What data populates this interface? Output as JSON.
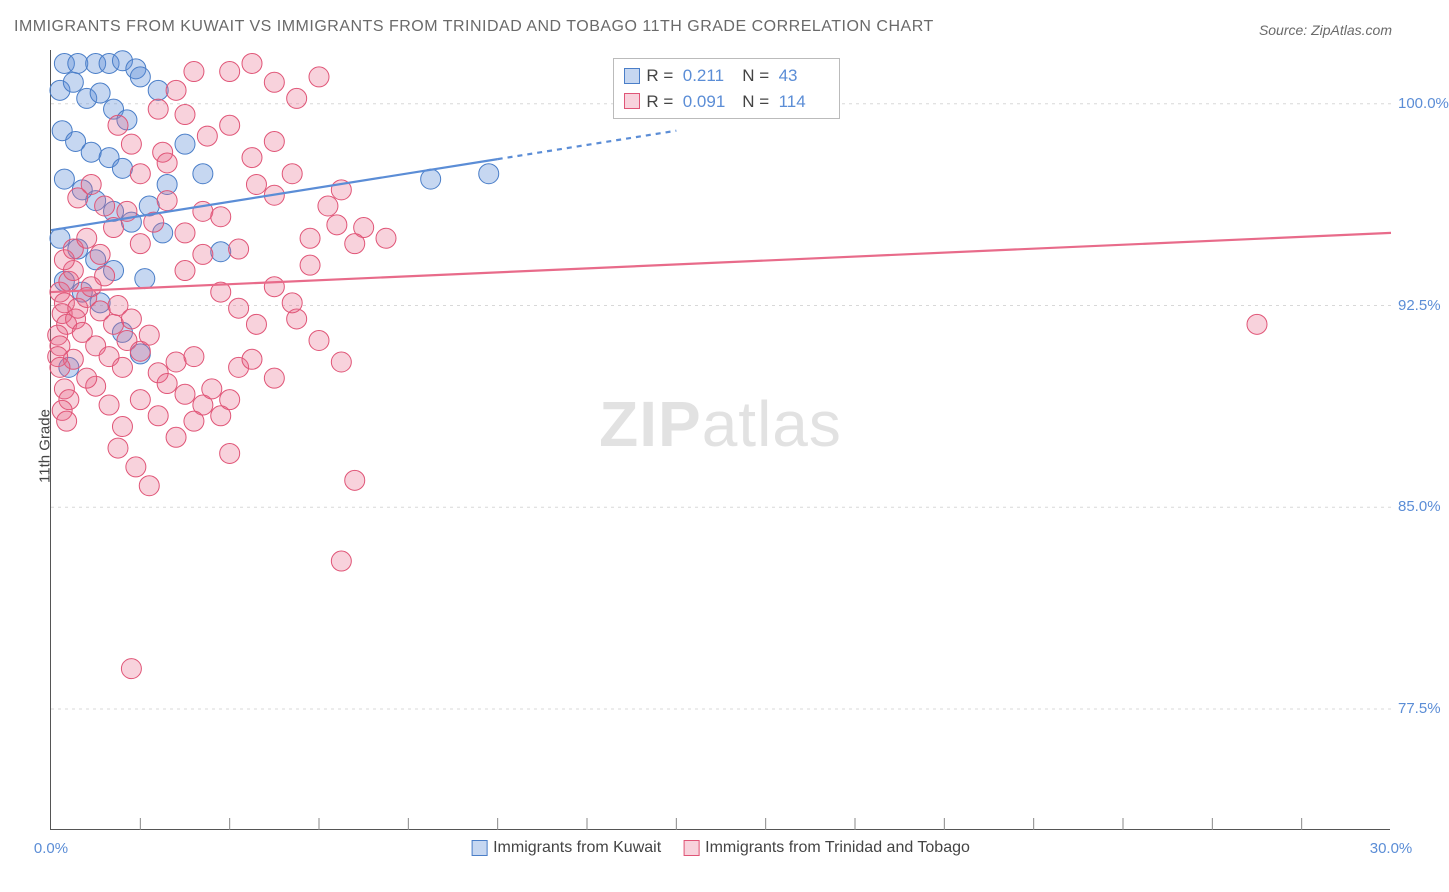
{
  "title": "IMMIGRANTS FROM KUWAIT VS IMMIGRANTS FROM TRINIDAD AND TOBAGO 11TH GRADE CORRELATION CHART",
  "source": "Source: ZipAtlas.com",
  "ylabel": "11th Grade",
  "watermark_a": "ZIP",
  "watermark_b": "atlas",
  "chart": {
    "type": "scatter-with-trendlines",
    "background_color": "#ffffff",
    "grid_color": "#d8d8d8",
    "axis_color": "#555555",
    "tick_label_color": "#5b8dd6",
    "label_fontsize": 15,
    "title_fontsize": 16,
    "title_color": "#6a6a6a",
    "xlim": [
      0,
      30
    ],
    "ylim": [
      73,
      102
    ],
    "xticks": [
      0,
      30
    ],
    "xtick_labels": [
      "0.0%",
      "30.0%"
    ],
    "xminor_ticks": [
      2,
      4,
      6,
      8,
      10,
      12,
      14,
      16,
      18,
      20,
      22,
      24,
      26,
      28
    ],
    "yticks": [
      77.5,
      85.0,
      92.5,
      100.0
    ],
    "ytick_labels": [
      "77.5%",
      "85.0%",
      "92.5%",
      "100.0%"
    ],
    "marker_radius": 10,
    "marker_opacity": 0.45,
    "line_width": 2.2
  },
  "series": [
    {
      "key": "kuwait",
      "label": "Immigrants from Kuwait",
      "color": "#5b8dd6",
      "fill": "rgba(91,141,214,0.35)",
      "stroke": "#4a7ec8",
      "R": "0.211",
      "N": "43",
      "trend": {
        "x1": 0,
        "y1": 95.3,
        "x2": 14,
        "y2": 99.0,
        "dash_from_x": 10
      },
      "points": [
        [
          0.3,
          101.5
        ],
        [
          0.6,
          101.5
        ],
        [
          1.0,
          101.5
        ],
        [
          1.3,
          101.5
        ],
        [
          1.6,
          101.6
        ],
        [
          1.9,
          101.3
        ],
        [
          0.2,
          100.5
        ],
        [
          0.5,
          100.8
        ],
        [
          0.8,
          100.2
        ],
        [
          1.1,
          100.4
        ],
        [
          1.4,
          99.8
        ],
        [
          1.7,
          99.4
        ],
        [
          0.25,
          99.0
        ],
        [
          0.55,
          98.6
        ],
        [
          0.9,
          98.2
        ],
        [
          1.3,
          98.0
        ],
        [
          1.6,
          97.6
        ],
        [
          0.3,
          97.2
        ],
        [
          0.7,
          96.8
        ],
        [
          1.0,
          96.4
        ],
        [
          1.4,
          96.0
        ],
        [
          1.8,
          95.6
        ],
        [
          2.2,
          96.2
        ],
        [
          2.6,
          97.0
        ],
        [
          3.0,
          98.5
        ],
        [
          3.4,
          97.4
        ],
        [
          0.2,
          95.0
        ],
        [
          0.6,
          94.6
        ],
        [
          1.0,
          94.2
        ],
        [
          1.4,
          93.8
        ],
        [
          0.3,
          93.4
        ],
        [
          0.7,
          93.0
        ],
        [
          1.1,
          92.6
        ],
        [
          1.6,
          91.5
        ],
        [
          2.0,
          90.7
        ],
        [
          0.4,
          90.2
        ],
        [
          8.5,
          97.2
        ],
        [
          9.8,
          97.4
        ],
        [
          3.8,
          94.5
        ],
        [
          2.5,
          95.2
        ],
        [
          2.0,
          101.0
        ],
        [
          2.4,
          100.5
        ],
        [
          2.1,
          93.5
        ]
      ]
    },
    {
      "key": "trinidad",
      "label": "Immigrants from Trinidad and Tobago",
      "color": "#e86b8a",
      "fill": "rgba(232,107,138,0.30)",
      "stroke": "#e05577",
      "R": "0.091",
      "N": "114",
      "trend": {
        "x1": 0,
        "y1": 93.0,
        "x2": 30,
        "y2": 95.2,
        "dash_from_x": 30
      },
      "points": [
        [
          0.2,
          93.0
        ],
        [
          0.3,
          92.6
        ],
        [
          0.25,
          92.2
        ],
        [
          0.35,
          91.8
        ],
        [
          0.4,
          93.4
        ],
        [
          0.5,
          93.8
        ],
        [
          0.55,
          92.0
        ],
        [
          0.6,
          92.4
        ],
        [
          0.7,
          91.5
        ],
        [
          0.8,
          92.8
        ],
        [
          0.9,
          93.2
        ],
        [
          1.0,
          91.0
        ],
        [
          1.1,
          92.3
        ],
        [
          1.2,
          93.6
        ],
        [
          1.3,
          90.6
        ],
        [
          1.4,
          91.8
        ],
        [
          1.5,
          92.5
        ],
        [
          1.6,
          90.2
        ],
        [
          1.7,
          91.2
        ],
        [
          1.8,
          92.0
        ],
        [
          2.0,
          90.8
        ],
        [
          2.2,
          91.4
        ],
        [
          2.4,
          90.0
        ],
        [
          2.6,
          89.6
        ],
        [
          2.8,
          90.4
        ],
        [
          3.0,
          89.2
        ],
        [
          3.2,
          90.6
        ],
        [
          3.4,
          88.8
        ],
        [
          3.6,
          89.4
        ],
        [
          3.8,
          88.4
        ],
        [
          4.0,
          89.0
        ],
        [
          4.2,
          90.2
        ],
        [
          0.3,
          94.2
        ],
        [
          0.5,
          94.6
        ],
        [
          0.8,
          95.0
        ],
        [
          1.1,
          94.4
        ],
        [
          1.4,
          95.4
        ],
        [
          1.7,
          96.0
        ],
        [
          2.0,
          94.8
        ],
        [
          2.3,
          95.6
        ],
        [
          2.6,
          96.4
        ],
        [
          3.0,
          95.2
        ],
        [
          3.4,
          96.0
        ],
        [
          3.8,
          95.8
        ],
        [
          4.2,
          94.6
        ],
        [
          4.6,
          97.0
        ],
        [
          5.0,
          96.6
        ],
        [
          5.4,
          97.4
        ],
        [
          5.8,
          95.0
        ],
        [
          6.2,
          96.2
        ],
        [
          4.0,
          101.2
        ],
        [
          4.5,
          101.5
        ],
        [
          5.0,
          100.8
        ],
        [
          5.5,
          100.2
        ],
        [
          6.0,
          101.0
        ],
        [
          3.0,
          99.6
        ],
        [
          3.5,
          98.8
        ],
        [
          4.0,
          99.2
        ],
        [
          4.5,
          98.0
        ],
        [
          5.0,
          98.6
        ],
        [
          2.5,
          98.2
        ],
        [
          2.0,
          97.4
        ],
        [
          6.5,
          96.8
        ],
        [
          7.0,
          95.4
        ],
        [
          7.5,
          95.0
        ],
        [
          5.5,
          92.0
        ],
        [
          6.0,
          91.2
        ],
        [
          6.5,
          90.4
        ],
        [
          6.4,
          95.5
        ],
        [
          6.8,
          94.8
        ],
        [
          1.0,
          89.5
        ],
        [
          1.3,
          88.8
        ],
        [
          1.6,
          88.0
        ],
        [
          2.0,
          89.0
        ],
        [
          2.4,
          88.4
        ],
        [
          2.8,
          87.6
        ],
        [
          3.2,
          88.2
        ],
        [
          0.5,
          90.5
        ],
        [
          0.8,
          89.8
        ],
        [
          1.5,
          87.2
        ],
        [
          4.5,
          90.5
        ],
        [
          5.0,
          89.8
        ],
        [
          4.0,
          87.0
        ],
        [
          1.8,
          79.0
        ],
        [
          6.5,
          83.0
        ],
        [
          6.8,
          86.0
        ],
        [
          2.6,
          97.8
        ],
        [
          3.0,
          93.8
        ],
        [
          3.4,
          94.4
        ],
        [
          3.8,
          93.0
        ],
        [
          4.2,
          92.4
        ],
        [
          4.6,
          91.8
        ],
        [
          5.0,
          93.2
        ],
        [
          5.4,
          92.6
        ],
        [
          5.8,
          94.0
        ],
        [
          27.0,
          91.8
        ],
        [
          0.15,
          91.4
        ],
        [
          0.2,
          91.0
        ],
        [
          0.15,
          90.6
        ],
        [
          0.2,
          90.2
        ],
        [
          0.3,
          89.4
        ],
        [
          0.4,
          89.0
        ],
        [
          0.25,
          88.6
        ],
        [
          0.35,
          88.2
        ],
        [
          1.9,
          86.5
        ],
        [
          2.2,
          85.8
        ],
        [
          0.6,
          96.5
        ],
        [
          0.9,
          97.0
        ],
        [
          1.2,
          96.2
        ],
        [
          2.8,
          100.5
        ],
        [
          3.2,
          101.2
        ],
        [
          2.4,
          99.8
        ],
        [
          1.5,
          99.2
        ],
        [
          1.8,
          98.5
        ]
      ]
    }
  ],
  "stats_box": {
    "r_label": "R =",
    "n_label": "N ="
  }
}
